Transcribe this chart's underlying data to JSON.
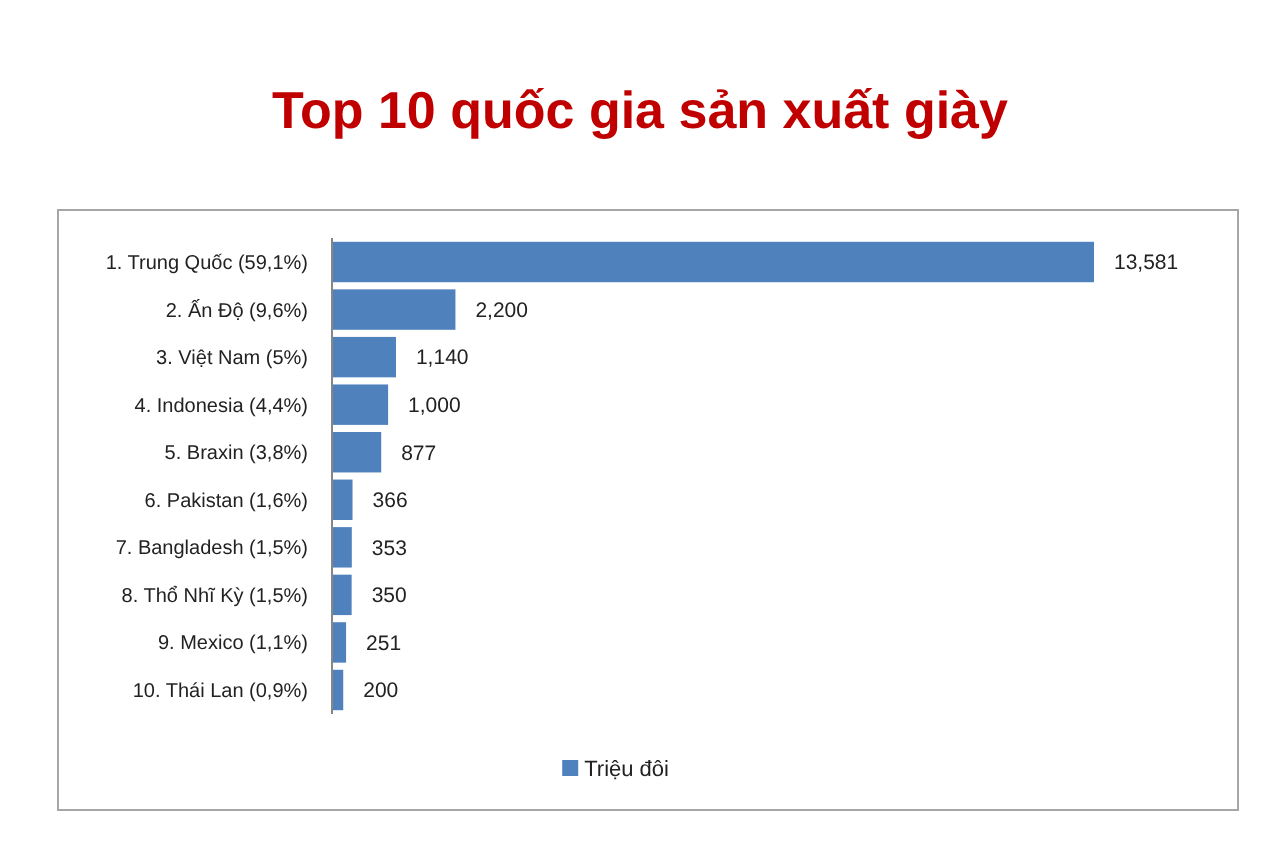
{
  "chart_data": {
    "type": "bar",
    "orientation": "horizontal",
    "title": "Top 10 quốc gia sản xuất giày",
    "categories": [
      "1. Trung Quốc (59,1%)",
      "2. Ấn Độ (9,6%)",
      "3. Việt Nam (5%)",
      "4. Indonesia (4,4%)",
      "5. Braxin (3,8%)",
      "6. Pakistan (1,6%)",
      "7. Bangladesh (1,5%)",
      "8. Thổ Nhĩ Kỳ (1,5%)",
      "9. Mexico (1,1%)",
      "10. Thái Lan (0,9%)"
    ],
    "series": [
      {
        "name": "Triệu đôi",
        "color": "#4f81bd",
        "values": [
          13581,
          2200,
          1140,
          1000,
          877,
          366,
          353,
          350,
          251,
          200
        ],
        "value_labels": [
          "13,581",
          "2,200",
          "1,140",
          "1,000",
          "877",
          "366",
          "353",
          "350",
          "251",
          "200"
        ]
      }
    ],
    "legend": "bottom"
  }
}
